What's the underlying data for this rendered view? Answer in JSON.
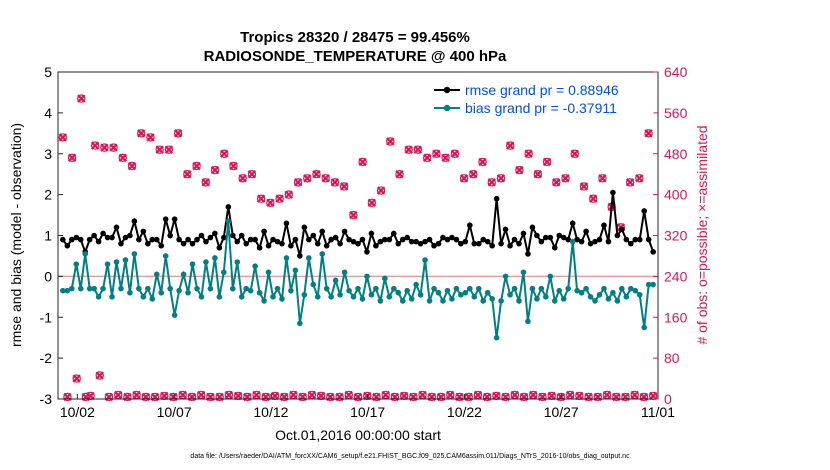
{
  "chart_data": {
    "type": "line",
    "title_line1": "Tropics 28320 / 28475 = 99.456%",
    "title_line2": "RADIOSONDE_TEMPERATURE @ 400 hPa",
    "xlabel": "Oct.01,2016 00:00:00 start",
    "ylabel_left": "rmse and bias (model - observation)",
    "ylabel_right": "# of obs: o=possible; ×=assimilated",
    "footer": "data file: /Users/raeder/DAI/ATM_forcXX/CAM6_setup/f.e21.FHIST_BGC.f09_025.CAM6assim.011/Diags_NTrS_2016-10/obs_diag_output.nc",
    "xlim": [
      0.5,
      31.5
    ],
    "ylim_left": [
      -3,
      5
    ],
    "ylim_right": [
      0,
      640
    ],
    "left_ticks": [
      -3,
      -2,
      -1,
      0,
      1,
      2,
      3,
      4,
      5
    ],
    "left_tick_labels": [
      "-3",
      "-2",
      "-1",
      "0",
      "1",
      "2",
      "3",
      "4",
      "5"
    ],
    "right_ticks": [
      0,
      80,
      160,
      240,
      320,
      400,
      480,
      560,
      640
    ],
    "right_tick_labels": [
      "0",
      "80",
      "160",
      "240",
      "320",
      "400",
      "480",
      "560",
      "640"
    ],
    "x_ticks": [
      1.5,
      6.5,
      11.5,
      16.5,
      21.5,
      26.5,
      31.5
    ],
    "x_tick_labels": [
      "10/02",
      "10/07",
      "10/12",
      "10/17",
      "10/22",
      "10/27",
      "11/01"
    ],
    "colors": {
      "rmse": "#000000",
      "bias": "#008080",
      "obs": "#d6185a",
      "zero_line": "#e0a0a0",
      "legend_text": "#0050e0"
    },
    "series": [
      {
        "name": "rmse grand pr = 0.88946",
        "axis": "left",
        "color": "#000000",
        "values": [
          0.9,
          0.75,
          0.9,
          0.95,
          0.9,
          0.6,
          0.9,
          1.0,
          0.85,
          1.05,
          0.95,
          0.95,
          1.2,
          0.8,
          0.95,
          1.0,
          1.35,
          0.9,
          1.1,
          0.8,
          0.9,
          0.9,
          0.75,
          1.4,
          1.0,
          1.4,
          0.9,
          0.8,
          0.9,
          0.8,
          0.9,
          1.0,
          0.85,
          0.95,
          1.05,
          0.7,
          0.95,
          1.7,
          1.0,
          0.85,
          1.0,
          0.8,
          0.9,
          0.9,
          0.7,
          1.1,
          0.75,
          0.9,
          0.85,
          0.8,
          1.3,
          0.75,
          0.9,
          0.5,
          1.2,
          0.9,
          1.0,
          0.8,
          1.1,
          0.75,
          0.9,
          0.95,
          0.8,
          1.1,
          0.9,
          0.85,
          0.8,
          0.9,
          0.6,
          1.05,
          0.75,
          0.85,
          0.9,
          0.9,
          1.05,
          0.8,
          0.9,
          0.95,
          0.85,
          0.85,
          0.8,
          0.85,
          0.9,
          0.75,
          0.8,
          0.95,
          0.9,
          0.95,
          0.9,
          0.8,
          0.85,
          1.25,
          0.8,
          0.8,
          0.9,
          0.85,
          0.75,
          1.9,
          0.8,
          1.15,
          0.75,
          0.9,
          0.8,
          1.05,
          0.55,
          1.2,
          1.0,
          0.85,
          0.95,
          0.95,
          0.7,
          1.0,
          0.95,
          0.9,
          1.3,
          0.9,
          0.85,
          1.1,
          0.8,
          0.85,
          0.9,
          1.25,
          0.85,
          2.05,
          1.0,
          1.15,
          0.9,
          0.8,
          0.9,
          0.9,
          1.6,
          0.9,
          0.6
        ]
      },
      {
        "name": "bias grand pr = -0.37911",
        "axis": "left",
        "color": "#008080",
        "values": [
          -0.35,
          -0.35,
          -0.3,
          0.3,
          -0.3,
          0.55,
          -0.3,
          -0.3,
          -0.5,
          -0.3,
          0.3,
          -0.5,
          0.35,
          -0.3,
          0.4,
          -0.4,
          0.55,
          -0.3,
          -0.5,
          -0.3,
          -0.55,
          0.05,
          -0.4,
          0.5,
          -0.3,
          -0.95,
          -0.35,
          0.05,
          -0.4,
          0.3,
          -0.3,
          -0.5,
          0.35,
          -0.3,
          0.45,
          -0.5,
          0.1,
          1.35,
          -0.3,
          0.35,
          -0.5,
          -0.3,
          -0.35,
          0.25,
          -0.4,
          -0.6,
          0.1,
          -0.5,
          -0.3,
          -0.55,
          0.45,
          -0.35,
          0.15,
          -1.15,
          -0.45,
          0.45,
          -0.2,
          -0.5,
          0.55,
          -0.3,
          -0.5,
          -0.1,
          -0.45,
          0.1,
          -0.35,
          -0.5,
          -0.3,
          -0.55,
          0.0,
          -0.45,
          -0.3,
          -0.6,
          -0.05,
          -0.5,
          -0.3,
          -0.4,
          -0.6,
          -0.35,
          -0.55,
          -0.2,
          -0.45,
          0.4,
          -0.6,
          -0.3,
          -0.4,
          -0.6,
          -0.35,
          -0.55,
          -0.3,
          -0.45,
          -0.4,
          -0.3,
          -0.5,
          -0.3,
          -0.6,
          -0.4,
          -0.55,
          -1.5,
          -0.6,
          0.0,
          -0.45,
          -0.3,
          -0.6,
          0.1,
          -1.1,
          -0.3,
          -0.55,
          -0.3,
          -0.5,
          0.0,
          -0.6,
          -0.35,
          -0.55,
          -0.3,
          0.85,
          -0.35,
          -0.4,
          -0.3,
          -0.5,
          -0.6,
          -0.45,
          -0.3,
          -0.55,
          -0.4,
          -0.6,
          -0.3,
          -0.5,
          -0.3,
          -0.35,
          -0.45,
          -1.25,
          -0.2,
          -0.2
        ]
      },
      {
        "name": "# obs possible",
        "axis": "right",
        "color": "#d6185a",
        "marker": "circle",
        "values": [
          512,
          4,
          472,
          40,
          588,
          4,
          6,
          496,
          46,
          492,
          4,
          492,
          8,
          472,
          4,
          456,
          8,
          520,
          4,
          512,
          4,
          488,
          6,
          488,
          4,
          520,
          8,
          440,
          4,
          456,
          8,
          424,
          4,
          448,
          4,
          480,
          8,
          456,
          6,
          432,
          4,
          440,
          8,
          392,
          4,
          384,
          6,
          392,
          4,
          400,
          8,
          424,
          4,
          432,
          8,
          440,
          6,
          432,
          4,
          424,
          4,
          416,
          8,
          360,
          4,
          464,
          6,
          384,
          4,
          408,
          8,
          504,
          4,
          440,
          6,
          488,
          4,
          488,
          8,
          472,
          4,
          480,
          4,
          472,
          8,
          480,
          4,
          432,
          4,
          440,
          8,
          464,
          4,
          424,
          6,
          432,
          4,
          496,
          8,
          448,
          4,
          480,
          8,
          440,
          4,
          464,
          6,
          424,
          4,
          432,
          8,
          480,
          6,
          416,
          4,
          392,
          4,
          432,
          8,
          376,
          4,
          336,
          4,
          424,
          8,
          432,
          4,
          520,
          6
        ]
      },
      {
        "name": "# obs assimilated",
        "axis": "right",
        "color": "#d6185a",
        "marker": "cross",
        "values": [
          512,
          4,
          472,
          40,
          588,
          4,
          6,
          496,
          46,
          492,
          4,
          492,
          8,
          472,
          4,
          456,
          8,
          520,
          4,
          512,
          4,
          488,
          6,
          488,
          4,
          520,
          8,
          440,
          4,
          456,
          8,
          424,
          4,
          448,
          4,
          480,
          8,
          456,
          6,
          432,
          4,
          440,
          8,
          392,
          4,
          384,
          6,
          392,
          4,
          400,
          8,
          424,
          4,
          432,
          8,
          440,
          6,
          432,
          4,
          424,
          4,
          416,
          8,
          360,
          4,
          464,
          6,
          384,
          4,
          408,
          8,
          504,
          4,
          440,
          6,
          488,
          4,
          488,
          8,
          472,
          4,
          480,
          4,
          472,
          8,
          480,
          4,
          432,
          4,
          440,
          8,
          464,
          4,
          424,
          6,
          432,
          4,
          496,
          8,
          448,
          4,
          480,
          8,
          440,
          4,
          464,
          6,
          424,
          4,
          432,
          8,
          480,
          6,
          416,
          4,
          392,
          4,
          432,
          8,
          376,
          4,
          336,
          4,
          424,
          8,
          432,
          4,
          520,
          6
        ]
      }
    ],
    "legend": [
      {
        "label": "rmse grand pr = 0.88946",
        "color": "#000000"
      },
      {
        "label": "bias grand pr = -0.37911",
        "color": "#008080"
      }
    ],
    "legend_position": "top-right"
  }
}
